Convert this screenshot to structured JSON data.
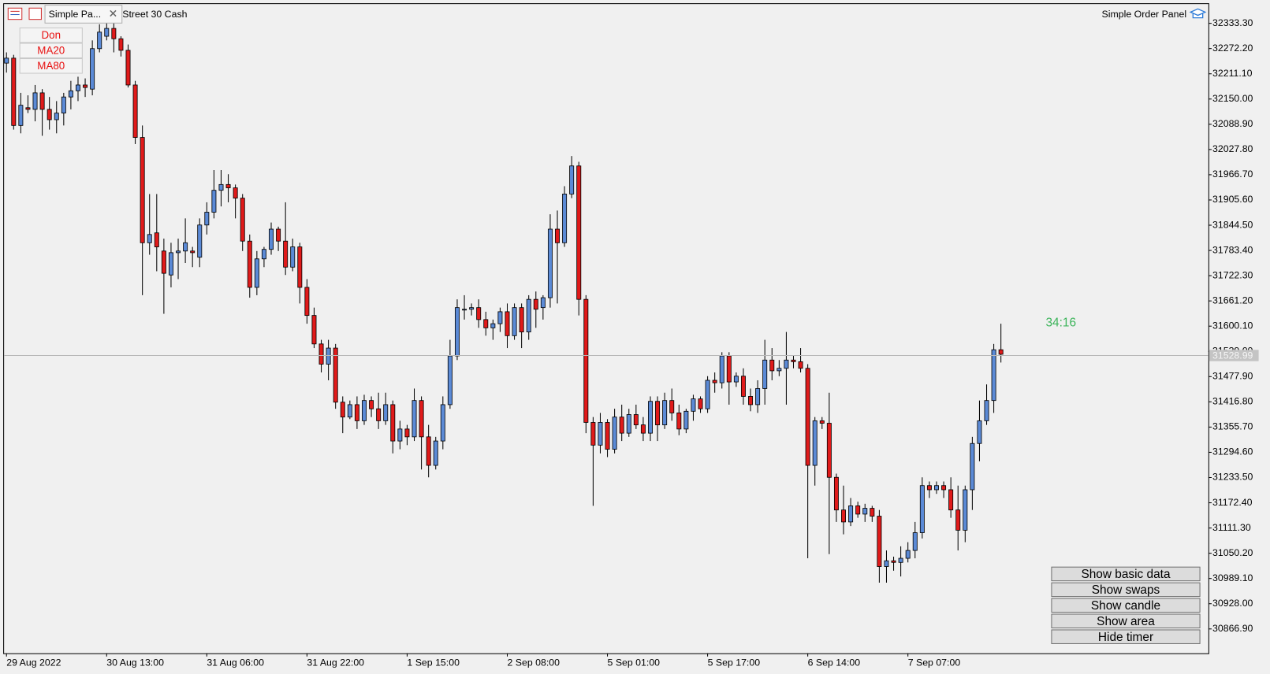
{
  "ui": {
    "tab_title": "Simple Pa...",
    "symbol": "Street 30 Cash",
    "panel_title": "Simple Order Panel",
    "indicators": [
      "Don",
      "MA20",
      "MA80"
    ],
    "timer": "34:16",
    "buttons": [
      "Show basic data",
      "Show swaps",
      "Show candle",
      "Show area",
      "Hide timer"
    ]
  },
  "chart_data": {
    "type": "candlestick",
    "x": [
      "29 Aug 2022",
      null,
      null,
      null,
      null,
      null,
      null,
      null,
      null,
      null,
      null,
      null,
      null,
      null,
      "30 Aug 13:00",
      null,
      null,
      null,
      null,
      null,
      null,
      null,
      null,
      null,
      null,
      null,
      null,
      null,
      "31 Aug 06:00",
      null,
      null,
      null,
      null,
      null,
      null,
      null,
      null,
      null,
      null,
      null,
      null,
      null,
      "31 Aug 22:00",
      null,
      null,
      null,
      null,
      null,
      null,
      null,
      null,
      null,
      null,
      null,
      null,
      null,
      "1 Sep 15:00",
      null,
      null,
      null,
      null,
      null,
      null,
      null,
      null,
      null,
      null,
      null,
      null,
      null,
      "2 Sep 08:00",
      null,
      null,
      null,
      null,
      null,
      null,
      null,
      null,
      null,
      null,
      null,
      null,
      null,
      "5 Sep 01:00",
      null,
      null,
      null,
      null,
      null,
      null,
      null,
      null,
      null,
      null,
      null,
      null,
      null,
      "5 Sep 17:00",
      null,
      null,
      null,
      null,
      null,
      null,
      null,
      null,
      null,
      null,
      null,
      null,
      null,
      "6 Sep 14:00",
      null,
      null,
      null,
      null,
      null,
      null,
      null,
      null,
      null,
      null,
      null,
      null,
      null,
      "7 Sep 07:00",
      null,
      null,
      null,
      null,
      null,
      null,
      null,
      null,
      null,
      null,
      null,
      null,
      null
    ],
    "open": [
      32237,
      32249,
      32086,
      32129,
      32125,
      32165,
      32125,
      32100,
      32116,
      32155,
      32170,
      32184,
      32174,
      32272,
      32302,
      32321,
      32296,
      32268,
      32184,
      32057,
      31802,
      31826,
      31782,
      31724,
      31778,
      31782,
      31782,
      31767,
      31845,
      31876,
      31929,
      31943,
      31935,
      31910,
      31806,
      31694,
      31763,
      31786,
      31835,
      31806,
      31743,
      31792,
      31694,
      31626,
      31557,
      31508,
      31547,
      31416,
      31380,
      31410,
      31371,
      31420,
      31400,
      31371,
      31410,
      31322,
      31351,
      31332,
      31420,
      31332,
      31263,
      31322,
      31410,
      31528,
      31641,
      31641,
      31645,
      31616,
      31596,
      31606,
      31635,
      31577,
      31645,
      31586,
      31665,
      31645,
      31669,
      31835,
      31802,
      31920,
      31988,
      31665,
      31367,
      31312,
      31367,
      31302,
      31380,
      31341,
      31386,
      31361,
      31341,
      31418,
      31361,
      31420,
      31390,
      31351,
      31394,
      31424,
      31400,
      31469,
      31463,
      31528,
      31465,
      31479,
      31430,
      31410,
      31449,
      31518,
      31492,
      31498,
      31518,
      31514,
      31498,
      31263,
      31371,
      31365,
      31234,
      31155,
      31126,
      31165,
      31145,
      31159,
      31140,
      31018,
      31032,
      31028,
      31038,
      31057,
      31100,
      31214,
      31204,
      31214,
      31204,
      31155,
      31106,
      31204,
      31316,
      31371,
      31420,
      31543
    ],
    "high": [
      32263,
      32257,
      32165,
      32159,
      32184,
      32174,
      32155,
      32145,
      32165,
      32194,
      32204,
      32200,
      32292,
      32331,
      32335,
      32341,
      32302,
      32282,
      32194,
      32086,
      31920,
      31920,
      31812,
      31802,
      31812,
      31861,
      31792,
      31861,
      31900,
      31978,
      31978,
      31968,
      31943,
      31920,
      31822,
      31782,
      31792,
      31851,
      31841,
      31900,
      31812,
      31802,
      31714,
      31645,
      31567,
      31567,
      31557,
      31430,
      31420,
      31430,
      31434,
      31430,
      31439,
      31439,
      31420,
      31371,
      31361,
      31449,
      31430,
      31361,
      31332,
      31430,
      31567,
      31665,
      31675,
      31655,
      31665,
      31635,
      31616,
      31645,
      31655,
      31655,
      31655,
      31675,
      31684,
      31675,
      31871,
      31880,
      31939,
      32012,
      31998,
      31675,
      31380,
      31390,
      31375,
      31400,
      31410,
      31400,
      31410,
      31380,
      31430,
      31430,
      31439,
      31449,
      31410,
      31400,
      31434,
      31430,
      31479,
      31488,
      31537,
      31537,
      31488,
      31498,
      31449,
      31469,
      31567,
      31547,
      31518,
      31586,
      31528,
      31547,
      31508,
      31380,
      31380,
      31439,
      31243,
      31214,
      31184,
      31175,
      31170,
      31165,
      31155,
      31057,
      31042,
      31067,
      31077,
      31126,
      31234,
      31224,
      31224,
      31224,
      31234,
      31214,
      31214,
      31332,
      31420,
      31459,
      31557,
      31606
    ],
    "low": [
      32214,
      32076,
      32067,
      32116,
      32096,
      32061,
      32076,
      32067,
      32086,
      32125,
      32145,
      32155,
      32159,
      32263,
      32292,
      32263,
      32253,
      32178,
      32041,
      31675,
      31773,
      31733,
      31630,
      31694,
      31714,
      31753,
      31743,
      31743,
      31822,
      31861,
      31890,
      31900,
      31861,
      31782,
      31669,
      31675,
      31743,
      31773,
      31782,
      31724,
      31733,
      31655,
      31606,
      31547,
      31488,
      31469,
      31400,
      31341,
      31375,
      31351,
      31361,
      31380,
      31351,
      31361,
      31292,
      31302,
      31312,
      31322,
      31253,
      31234,
      31253,
      31302,
      31400,
      31518,
      31616,
      31626,
      31596,
      31577,
      31567,
      31586,
      31547,
      31567,
      31547,
      31567,
      31596,
      31616,
      31645,
      31655,
      31792,
      31910,
      31626,
      31341,
      31165,
      31292,
      31283,
      31292,
      31322,
      31332,
      31351,
      31322,
      31322,
      31322,
      31351,
      31371,
      31336,
      31341,
      31371,
      31390,
      31390,
      31439,
      31449,
      31410,
      31453,
      31410,
      31394,
      31390,
      31410,
      31469,
      31479,
      31410,
      31498,
      31488,
      31038,
      31214,
      31351,
      31048,
      31126,
      31096,
      31116,
      31136,
      31126,
      31126,
      30979,
      30979,
      31008,
      30994,
      31028,
      31038,
      31086,
      31184,
      31194,
      31184,
      31136,
      31057,
      31077,
      31155,
      31273,
      31361,
      31390,
      31512
    ],
    "close": [
      32249,
      32086,
      32135,
      32125,
      32165,
      32125,
      32100,
      32116,
      32155,
      32170,
      32184,
      32178,
      32272,
      32312,
      32321,
      32296,
      32268,
      32184,
      32057,
      31802,
      31822,
      31792,
      31728,
      31778,
      31782,
      31802,
      31778,
      31845,
      31876,
      31929,
      31943,
      31935,
      31910,
      31806,
      31694,
      31763,
      31786,
      31835,
      31806,
      31743,
      31792,
      31694,
      31626,
      31557,
      31508,
      31547,
      31416,
      31380,
      31410,
      31371,
      31420,
      31400,
      31371,
      31410,
      31322,
      31351,
      31332,
      31420,
      31332,
      31263,
      31322,
      31410,
      31528,
      31645,
      31641,
      31645,
      31616,
      31596,
      31606,
      31635,
      31577,
      31645,
      31586,
      31665,
      31641,
      31669,
      31835,
      31802,
      31920,
      31988,
      31665,
      31367,
      31312,
      31367,
      31302,
      31380,
      31341,
      31386,
      31361,
      31341,
      31418,
      31361,
      31420,
      31390,
      31351,
      31394,
      31424,
      31400,
      31469,
      31463,
      31528,
      31465,
      31479,
      31430,
      31410,
      31449,
      31518,
      31492,
      31498,
      31518,
      31514,
      31498,
      31263,
      31371,
      31365,
      31234,
      31155,
      31126,
      31165,
      31145,
      31159,
      31140,
      31018,
      31032,
      31028,
      31038,
      31057,
      31100,
      31214,
      31204,
      31214,
      31204,
      31155,
      31106,
      31204,
      31316,
      31371,
      31420,
      31543,
      31532
    ],
    "up_color": "#5b8ad6",
    "down_color": "#e01a1a",
    "ylim": [
      30808,
      32380
    ],
    "yticks": [
      {
        "value": 30866.9,
        "label": "30866.90"
      },
      {
        "value": 30928,
        "label": "30928.00"
      },
      {
        "value": 30989.1,
        "label": "30989.10"
      },
      {
        "value": 31050.2,
        "label": "31050.20"
      },
      {
        "value": 31111.3,
        "label": "31111.30"
      },
      {
        "value": 31172.4,
        "label": "31172.40"
      },
      {
        "value": 31233.5,
        "label": "31233.50"
      },
      {
        "value": 31294.6,
        "label": "31294.60"
      },
      {
        "value": 31355.7,
        "label": "31355.70"
      },
      {
        "value": 31416.8,
        "label": "31416.80"
      },
      {
        "value": 31477.9,
        "label": "31477.90"
      },
      {
        "value": 31539,
        "label": "31539.00"
      },
      {
        "value": 31600.1,
        "label": "31600.10"
      },
      {
        "value": 31661.2,
        "label": "31661.20"
      },
      {
        "value": 31722.3,
        "label": "31722.30"
      },
      {
        "value": 31783.4,
        "label": "31783.40"
      },
      {
        "value": 31844.5,
        "label": "31844.50"
      },
      {
        "value": 31905.6,
        "label": "31905.60"
      },
      {
        "value": 31966.7,
        "label": "31966.70"
      },
      {
        "value": 32027.8,
        "label": "32027.80"
      },
      {
        "value": 32088.9,
        "label": "32088.90"
      },
      {
        "value": 32150,
        "label": "32150.00"
      },
      {
        "value": 32211.1,
        "label": "32211.10"
      },
      {
        "value": 32272.2,
        "label": "32272.20"
      },
      {
        "value": 32333.3,
        "label": "32333.30"
      }
    ],
    "current_price": 31528.99
  }
}
